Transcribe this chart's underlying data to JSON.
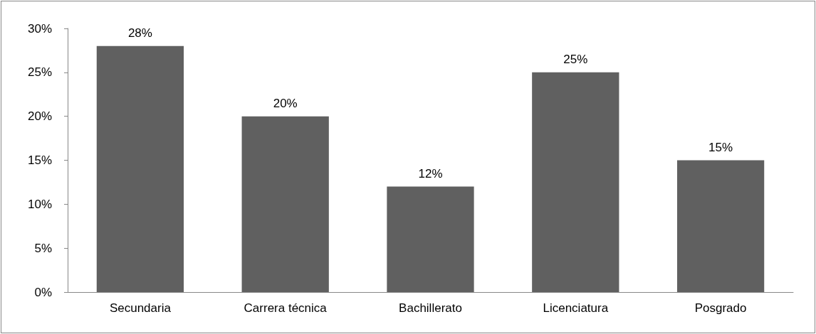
{
  "chart_data": {
    "type": "bar",
    "categories": [
      "Secundaria",
      "Carrera técnica",
      "Bachillerato",
      "Licenciatura",
      "Posgrado"
    ],
    "values": [
      28,
      20,
      12,
      25,
      15
    ],
    "value_labels": [
      "28%",
      "20%",
      "12%",
      "25%",
      "15%"
    ],
    "color": "#606060",
    "ylim": [
      0,
      30
    ],
    "yticks": [
      {
        "value": 0,
        "label": "0%"
      },
      {
        "value": 5,
        "label": "5%"
      },
      {
        "value": 10,
        "label": "10%"
      },
      {
        "value": 15,
        "label": "15%"
      },
      {
        "value": 20,
        "label": "20%"
      },
      {
        "value": 25,
        "label": "25%"
      },
      {
        "value": 30,
        "label": "30%"
      }
    ],
    "grid": false
  }
}
